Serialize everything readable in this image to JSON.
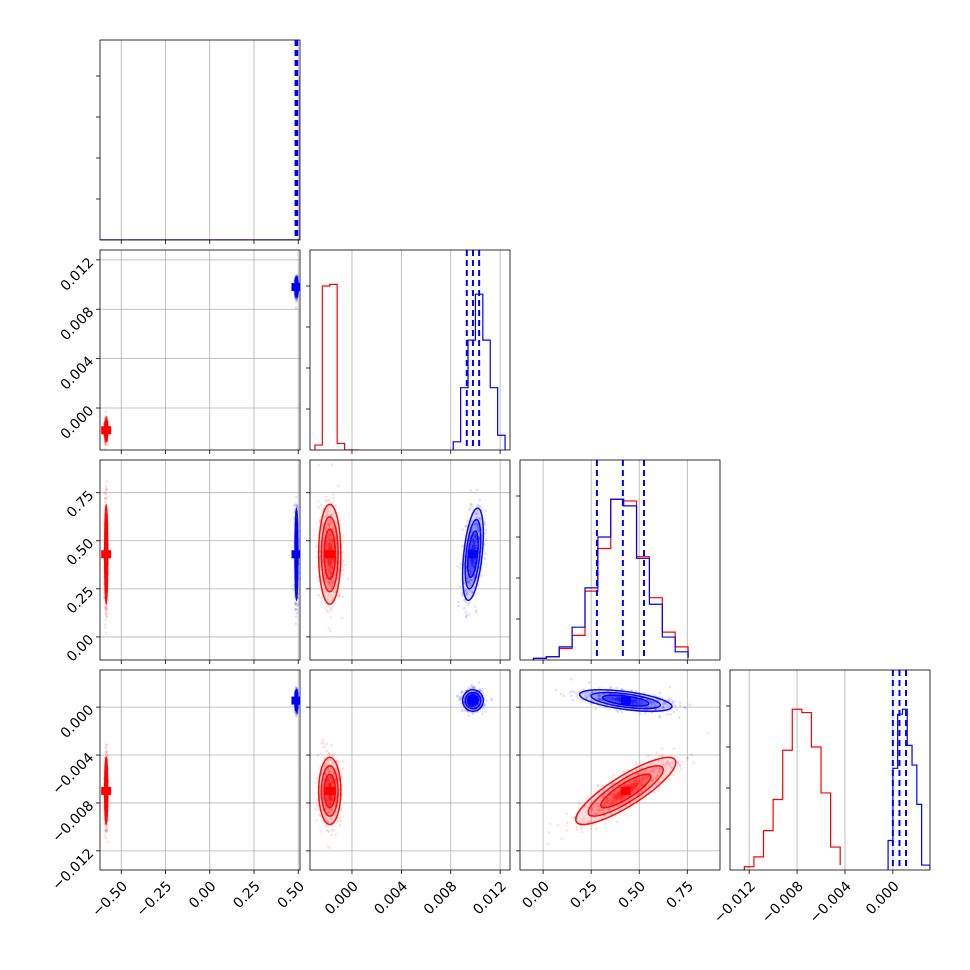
{
  "chart_data": {
    "type": "corner",
    "title": "",
    "grid": true,
    "parameters": [
      {
        "range": [
          -0.62,
          0.51
        ],
        "ticks": [
          -0.5,
          -0.25,
          0.0,
          0.25,
          0.5
        ],
        "tick_labels": [
          "−0.50",
          "−0.25",
          "0.00",
          "0.25",
          "0.50"
        ]
      },
      {
        "range": [
          -0.0034,
          0.0128
        ],
        "ticks": [
          0.0,
          0.004,
          0.008,
          0.012
        ],
        "tick_labels": [
          "0.000",
          "0.004",
          "0.008",
          "0.012"
        ]
      },
      {
        "range": [
          -0.12,
          0.92
        ],
        "ticks": [
          0.0,
          0.25,
          0.5,
          0.75
        ],
        "tick_labels": [
          "0.00",
          "0.25",
          "0.50",
          "0.75"
        ]
      },
      {
        "range": [
          -0.0136,
          0.0031
        ],
        "ticks": [
          -0.012,
          -0.008,
          -0.004,
          0.0
        ],
        "tick_labels": [
          "−0.012",
          "−0.008",
          "−0.004",
          "0.000"
        ]
      }
    ],
    "series": [
      {
        "color": "#ff0000",
        "means": [
          -0.585,
          -0.0018,
          0.43,
          -0.007
        ],
        "sigmas": [
          0.004,
          0.00045,
          0.13,
          0.0014
        ],
        "correlations": [
          [
            2,
            3,
            0.85
          ]
        ],
        "histograms": [
          {
            "bins": [
              -0.62,
              0.51
            ],
            "counts": [
              0,
              1
            ]
          },
          {
            "bins": [
              -0.003,
              -0.0024,
              -0.0018,
              -0.0012,
              -0.0006,
              0.0,
              0.0006
            ],
            "counts": [
              0.03,
              1.0,
              1.01,
              0.04,
              0.0,
              0.0
            ]
          },
          {
            "bins": [
              -0.05,
              0.017,
              0.084,
              0.151,
              0.218,
              0.285,
              0.352,
              0.419,
              0.486,
              0.553,
              0.62,
              0.687,
              0.754
            ],
            "counts": [
              0.01,
              0.02,
              0.07,
              0.15,
              0.42,
              0.68,
              0.98,
              0.97,
              0.63,
              0.38,
              0.17,
              0.08,
              0.02
            ]
          },
          {
            "bins": [
              -0.0124,
              -0.0116,
              -0.0108,
              -0.01,
              -0.0092,
              -0.0084,
              -0.0076,
              -0.0068,
              -0.006,
              -0.0052,
              -0.0044
            ],
            "counts": [
              0.02,
              0.08,
              0.24,
              0.43,
              0.73,
              0.98,
              0.96,
              0.75,
              0.47,
              0.14,
              0.03
            ]
          }
        ]
      },
      {
        "color": "#0000ff",
        "means": [
          0.49,
          0.0098,
          0.43,
          0.00055
        ],
        "sigmas": [
          0.004,
          0.00042,
          0.12,
          0.00045
        ],
        "correlations": [
          [
            2,
            3,
            -0.55
          ],
          [
            1,
            2,
            0.45
          ]
        ],
        "quantiles": [
          [
            0.485,
            0.49,
            0.495
          ],
          [
            0.0093,
            0.0098,
            0.0103
          ],
          [
            0.28,
            0.415,
            0.525
          ],
          [
            0.0,
            0.00055,
            0.0011
          ]
        ],
        "histograms": [
          {
            "bins": [
              -0.62,
              0.51
            ],
            "counts": [
              0,
              1
            ]
          },
          {
            "bins": [
              0.0082,
              0.0088,
              0.0094,
              0.01,
              0.0106,
              0.0112,
              0.0118,
              0.0124
            ],
            "counts": [
              0.05,
              0.38,
              0.67,
              0.95,
              0.67,
              0.38,
              0.09
            ]
          },
          {
            "bins": [
              -0.05,
              0.017,
              0.084,
              0.151,
              0.218,
              0.285,
              0.352,
              0.419,
              0.486,
              0.553,
              0.62,
              0.687,
              0.754
            ],
            "counts": [
              0.01,
              0.02,
              0.08,
              0.2,
              0.44,
              0.75,
              0.98,
              0.94,
              0.62,
              0.34,
              0.14,
              0.05,
              0.01
            ]
          },
          {
            "bins": [
              -0.0004,
              0.0,
              0.0004,
              0.0008,
              0.0012,
              0.0016,
              0.002,
              0.0024,
              0.0031
            ],
            "counts": [
              0.18,
              0.62,
              0.95,
              0.98,
              0.76,
              0.64,
              0.4,
              0.03
            ]
          }
        ]
      }
    ]
  }
}
